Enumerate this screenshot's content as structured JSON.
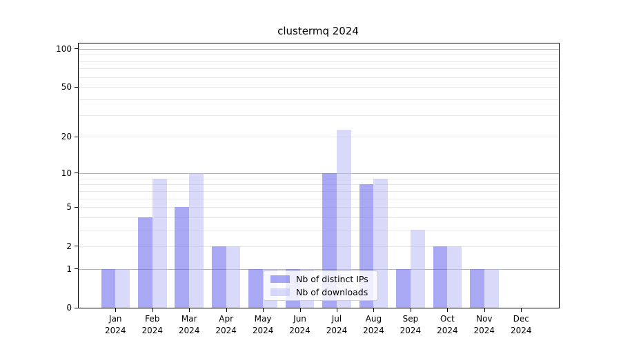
{
  "figure": {
    "title": "clustermq 2024"
  },
  "chart_data": {
    "type": "bar",
    "title": "clustermq 2024",
    "categories": [
      "Jan",
      "Feb",
      "Mar",
      "Apr",
      "May",
      "Jun",
      "Jul",
      "Aug",
      "Sep",
      "Oct",
      "Nov",
      "Dec"
    ],
    "category_year": "2024",
    "series": [
      {
        "name": "Nb of distinct IPs",
        "color": "#a8a8f4",
        "fill": "rgba(102,102,238,0.57)",
        "values": [
          1,
          4,
          5,
          2,
          1,
          1,
          10,
          8,
          1,
          2,
          1,
          0
        ]
      },
      {
        "name": "Nb of downloads",
        "color": "#d9d9f7",
        "fill": "rgba(180,180,245,0.50)",
        "values": [
          1,
          9,
          10,
          2,
          1,
          1,
          23,
          9,
          3,
          2,
          1,
          0
        ]
      }
    ],
    "xlabel": "",
    "ylabel": "",
    "yscale": "log1p",
    "ylim": [
      0,
      110
    ],
    "yticks": [
      0,
      1,
      2,
      5,
      10,
      20,
      50,
      100
    ],
    "major_gridlines": [
      1,
      10,
      100
    ],
    "minor_gridlines": [
      2,
      3,
      4,
      5,
      6,
      7,
      8,
      9,
      20,
      30,
      40,
      50,
      60,
      70,
      80,
      90
    ],
    "grid": true,
    "legend_position": "lower-center",
    "colors": {
      "major_grid": "#b3b3b3",
      "minor_grid": "#e9e9e9",
      "spine": "#000000",
      "tick_label": "#000000"
    }
  }
}
